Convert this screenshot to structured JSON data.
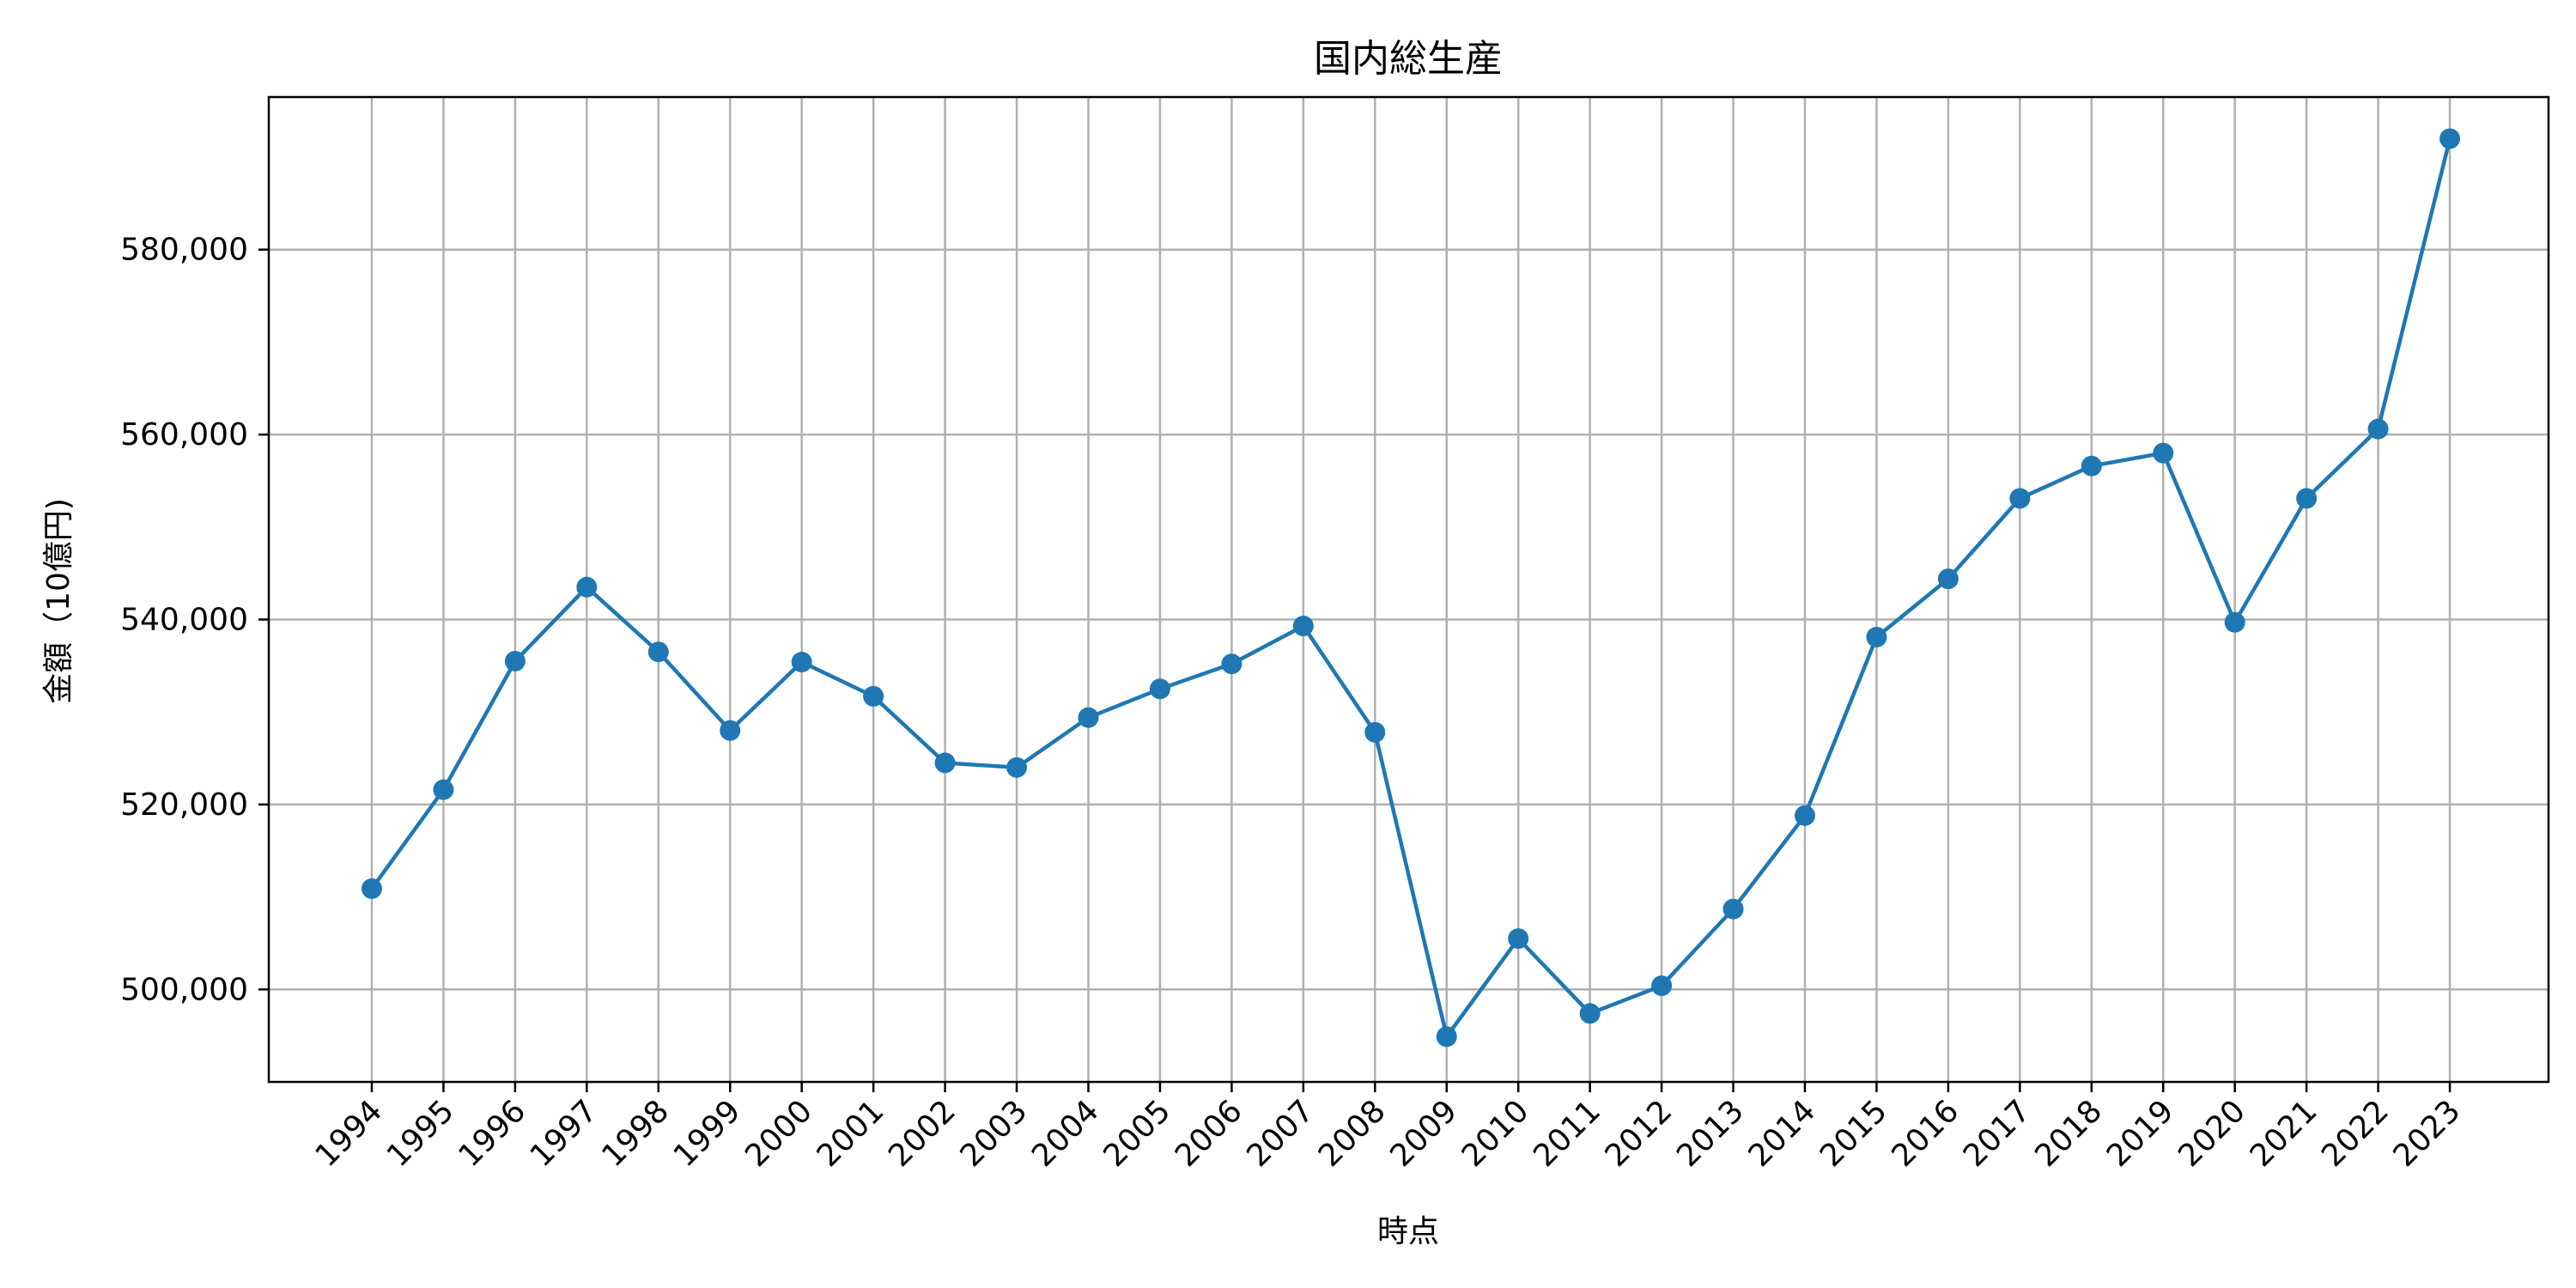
{
  "chart_data": {
    "type": "line",
    "title": "国内総生産",
    "xlabel": "時点",
    "ylabel": "金額（10億円)",
    "grid": true,
    "color": "#1f77b4",
    "categories": [
      "1994",
      "1995",
      "1996",
      "1997",
      "1998",
      "1999",
      "2000",
      "2001",
      "2002",
      "2003",
      "2004",
      "2005",
      "2006",
      "2007",
      "2008",
      "2009",
      "2010",
      "2011",
      "2012",
      "2013",
      "2014",
      "2015",
      "2016",
      "2017",
      "2018",
      "2019",
      "2020",
      "2021",
      "2022",
      "2023"
    ],
    "values": [
      510900,
      521600,
      535500,
      543500,
      536500,
      528000,
      535400,
      531700,
      524500,
      524000,
      529400,
      532500,
      535200,
      539300,
      527800,
      494900,
      505500,
      497400,
      500400,
      508700,
      518800,
      538100,
      544400,
      553100,
      556600,
      558000,
      539700,
      553100,
      560600,
      592000
    ],
    "ylim": [
      490000,
      596500
    ],
    "yticks": [
      500000,
      520000,
      540000,
      560000,
      580000
    ],
    "ytick_labels": [
      "500,000",
      "520,000",
      "540,000",
      "560,000",
      "580,000"
    ]
  }
}
